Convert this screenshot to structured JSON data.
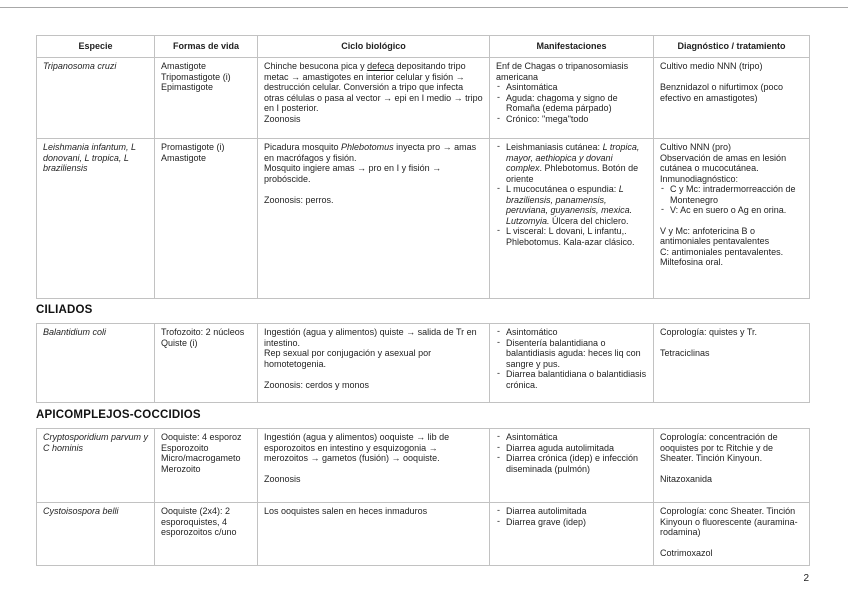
{
  "colors": {
    "border": "#c2c2c2",
    "text": "#1f1f1f",
    "top_rule": "#a8a8a8"
  },
  "page": {
    "number": "2"
  },
  "headers": {
    "especie": "Especie",
    "formas": "Formas de vida",
    "ciclo": "Ciclo biológico",
    "manifestaciones": "Manifestaciones",
    "diagnostico": "Diagnóstico / tratamiento"
  },
  "flagelados": {
    "tripanosoma": {
      "especie": "Tripanosoma cruzi",
      "formas": "Amastigote\nTripomastigote (i)\nEpimastigote",
      "ciclo_pre": "Chinche besucona pica y ",
      "ciclo_underline": "defeca",
      "ciclo_post": " depositando tripo metac → amastigotes en interior celular y fisión → destrucción celular. Conversión a tripo que infecta otras células o pasa al vector → epi en I medio → tripo en I posterior.\nZoonosis",
      "manif_intro": "Enf de Chagas o tripanosomiasis americana",
      "manif_items": [
        "Asintomática",
        "Aguda: chagoma y signo de Romaña (edema párpado)",
        "Crónico: \"mega\"todo"
      ],
      "diagnostico": "Cultivo medio NNN (tripo)\n\nBenznidazol o nifurtimox (poco efectivo en amastigotes)"
    },
    "leishmania": {
      "especie": "Leishmania infantum, L donovani, L tropica, L braziliensis",
      "formas": "Promastigote (i)\nAmastigote",
      "ciclo_pre": "Picadura mosquito ",
      "ciclo_em": "Phlebotomus",
      "ciclo_post": " inyecta pro → amas en macrófagos y fisión.\nMosquito ingiere amas → pro en I y fisión → probóscide.\n\nZoonosis: perros.",
      "manif_items": [
        {
          "pre": "Leishmaniasis cutánea: ",
          "em": "L tropica, mayor, aethiopica y dovani complex",
          "post": ". Phlebotomus. Botón de oriente"
        },
        {
          "pre": "L mucocutánea o espundia: ",
          "em": "L braziliensis, panamensis, peruviana, guyanensis, mexica. Lutzomyia.",
          "post": " Úlcera del chiclero."
        },
        {
          "pre": "L visceral: L dovani, L infantu,. Phlebotomus. Kala-azar clásico.",
          "em": "",
          "post": ""
        }
      ],
      "diag_top": "Cultivo NNN (pro)\nObservación de amas en lesión cutánea o mucocutánea.\nInmunodiagnóstico:",
      "diag_items": [
        "C y Mc: intradermorreacción de Montenegro",
        "V: Ac en suero o Ag en orina."
      ],
      "diag_bottom": "V y Mc: anfotericina B o antimoniales pentavalentes\nC: antimoniales pentavalentes. Miltefosina oral."
    }
  },
  "ciliados": {
    "title": "CILIADOS",
    "balantidium": {
      "especie": "Balantidium coli",
      "formas": "Trofozoito: 2 núcleos\nQuiste (i)",
      "ciclo": "Ingestión (agua y alimentos) quiste → salida de Tr en intestino.\nRep sexual por conjugación y asexual por homotetogenia.\n\nZoonosis: cerdos y monos",
      "manif_items": [
        "Asintomático",
        "Disentería balantidiana o balantidiasis aguda: heces liq con sangre y pus.",
        "Diarrea balantidiana o balantidiasis crónica."
      ],
      "diagnostico": "Coprología: quistes y Tr.\n\nTetraciclinas"
    }
  },
  "apicomplejos": {
    "title": "APICOMPLEJOS-COCCIDIOS",
    "cryptosporidium": {
      "especie": "Cryptosporidium parvum y C hominis",
      "formas": "Ooquiste: 4 esporoz\nEsporozoito\nMicro/macrogameto\nMerozoito",
      "ciclo": "Ingestión (agua y alimentos) ooquiste → lib de esporozoitos en intestino y esquizogonia → merozoitos → gametos (fusión) → ooquiste.\n\nZoonosis",
      "manif_items": [
        "Asintomática",
        "Diarrea aguda autolimitada",
        "Diarrea crónica (idep) e infección diseminada (pulmón)"
      ],
      "diagnostico": "Coprología: concentración de ooquistes por tc Ritchie y de Sheater. Tinción Kinyoun.\n\nNitazoxanida"
    },
    "cystoisospora": {
      "especie": "Cystoisospora belli",
      "formas": "Ooquiste (2x4): 2 esporoquistes, 4 esporozoitos c/uno",
      "ciclo": "Los ooquistes salen en heces inmaduros",
      "manif_items": [
        "Diarrea autolimitada",
        "Diarrea grave (idep)"
      ],
      "diagnostico": "Coprología: conc Sheater. Tinción Kinyoun o fluorescente (auramina-rodamina)\n\nCotrimoxazol"
    }
  }
}
